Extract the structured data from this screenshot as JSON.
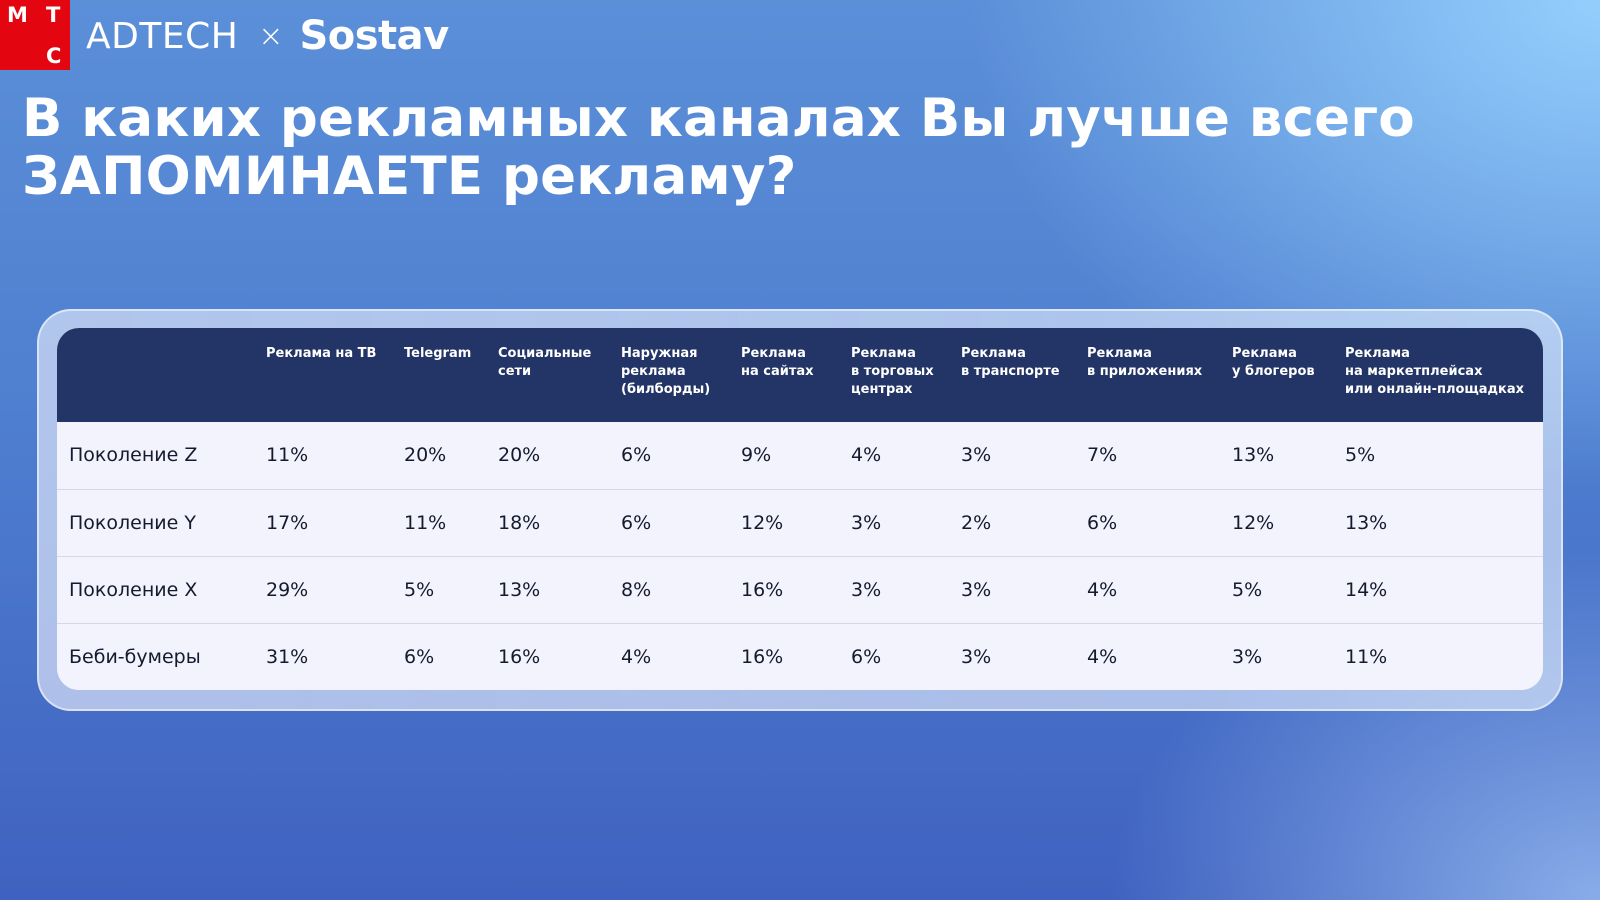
{
  "header": {
    "logo_letters": [
      "М",
      "Т",
      "С"
    ],
    "adtech": "ADTECH",
    "cross": "×",
    "sostav": "Sostav",
    "colors": {
      "logo_red": "#e30611",
      "header_bg": "#233566"
    }
  },
  "title": "В каких рекламных каналах Вы лучше всего ЗАПОМИНАЕТЕ рекламу?",
  "chart_data": {
    "type": "table",
    "title": "В каких рекламных каналах Вы лучше всего ЗАПОМИНАЕТЕ рекламу?",
    "columns": [
      "Реклама на ТВ",
      "Telegram",
      "Социальные\nсети",
      "Наружная\nреклама\n(билборды)",
      "Реклама\nна сайтах",
      "Реклама\nв торговых\nцентрах",
      "Реклама\nв транспорте",
      "Реклама\nв приложениях",
      "Реклама\nу блогеров",
      "Реклама\nна маркетплейсах\nили онлайн-площадках"
    ],
    "rows": [
      {
        "label": "Поколение Z",
        "values": [
          "11%",
          "20%",
          "20%",
          "6%",
          "9%",
          "4%",
          "3%",
          "7%",
          "13%",
          "5%"
        ]
      },
      {
        "label": "Поколение Y",
        "values": [
          "17%",
          "11%",
          "18%",
          "6%",
          "12%",
          "3%",
          "2%",
          "6%",
          "12%",
          "13%"
        ]
      },
      {
        "label": "Поколение X",
        "values": [
          "29%",
          "5%",
          "13%",
          "8%",
          "16%",
          "3%",
          "3%",
          "4%",
          "5%",
          "14%"
        ]
      },
      {
        "label": "Беби-бумеры",
        "values": [
          "31%",
          "6%",
          "16%",
          "4%",
          "16%",
          "6%",
          "3%",
          "4%",
          "3%",
          "11%"
        ]
      }
    ]
  }
}
